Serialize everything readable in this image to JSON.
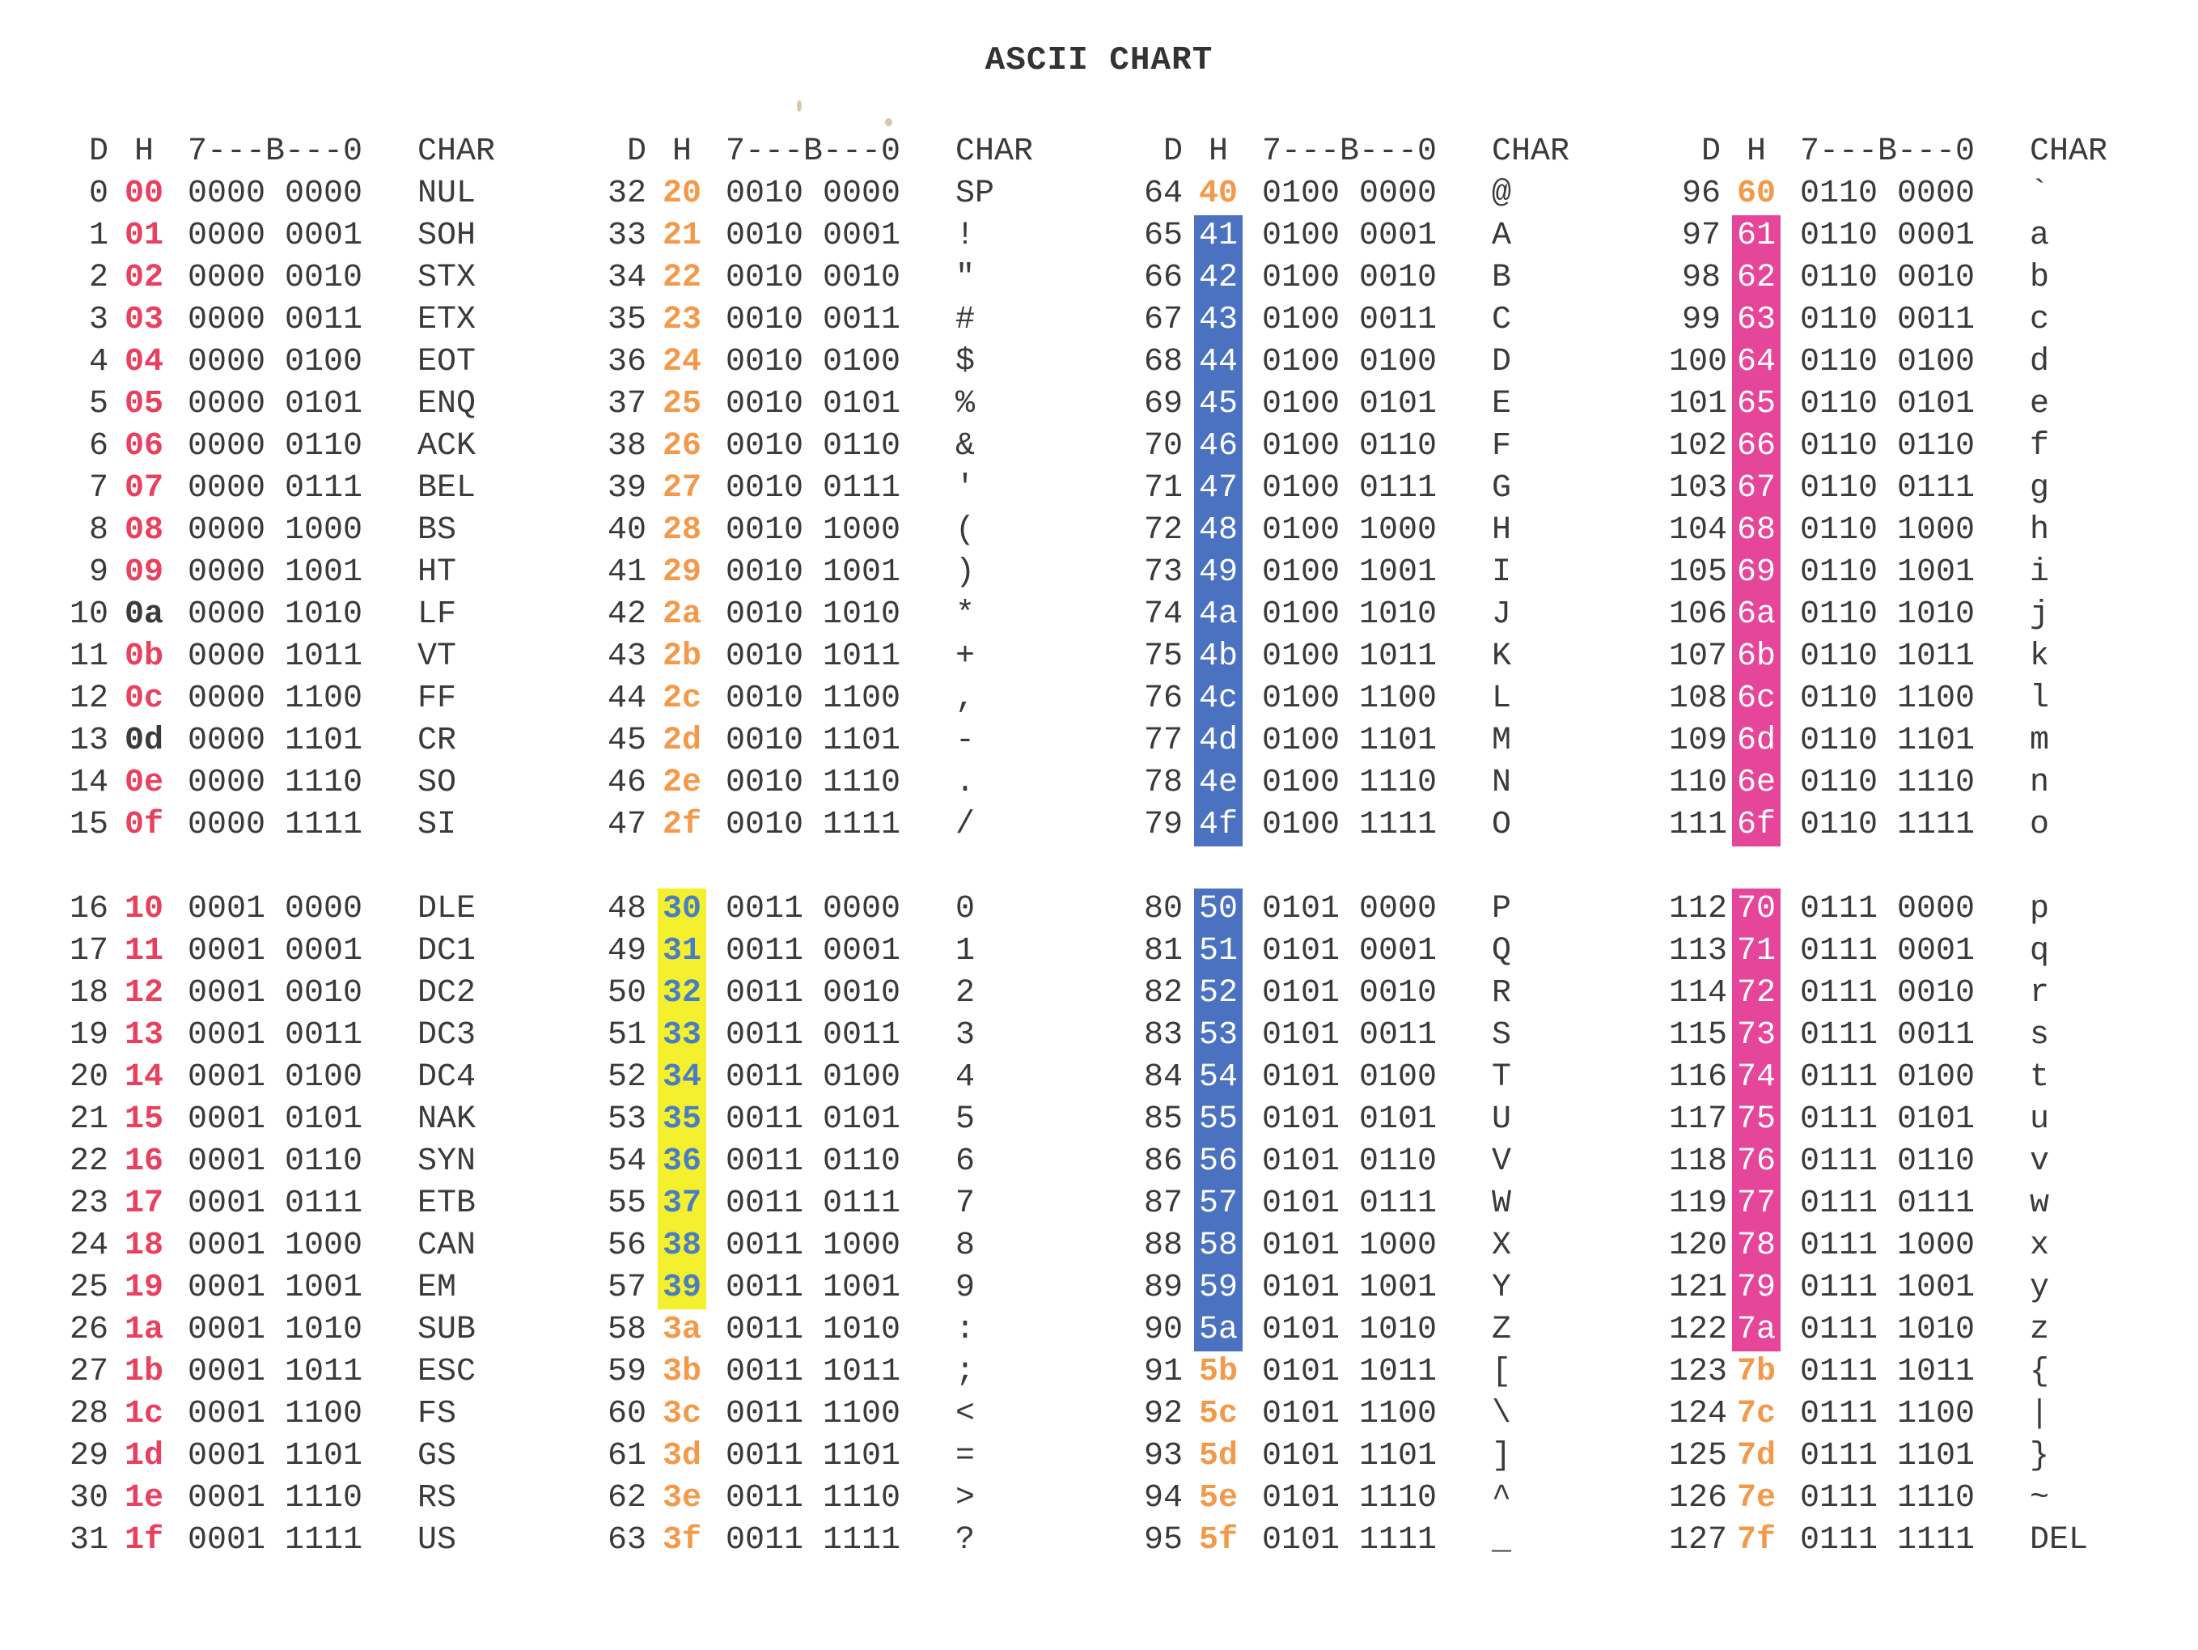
{
  "title": "ASCII CHART",
  "header": {
    "dec": "D",
    "hex": "H",
    "bits": "7---B---0",
    "char": "CHAR"
  },
  "colors": {
    "red": "#e8405e",
    "orange": "#f39a4a",
    "yellow": "#f4f02e",
    "blue": "#4a72c0",
    "pink": "#e6469a"
  },
  "rows": [
    {
      "d": "0",
      "h": "00",
      "b": "0000 0000",
      "c": "NUL",
      "s": "red"
    },
    {
      "d": "1",
      "h": "01",
      "b": "0000 0001",
      "c": "SOH",
      "s": "red"
    },
    {
      "d": "2",
      "h": "02",
      "b": "0000 0010",
      "c": "STX",
      "s": "red"
    },
    {
      "d": "3",
      "h": "03",
      "b": "0000 0011",
      "c": "ETX",
      "s": "red"
    },
    {
      "d": "4",
      "h": "04",
      "b": "0000 0100",
      "c": "EOT",
      "s": "red"
    },
    {
      "d": "5",
      "h": "05",
      "b": "0000 0101",
      "c": "ENQ",
      "s": "red"
    },
    {
      "d": "6",
      "h": "06",
      "b": "0000 0110",
      "c": "ACK",
      "s": "red"
    },
    {
      "d": "7",
      "h": "07",
      "b": "0000 0111",
      "c": "BEL",
      "s": "red"
    },
    {
      "d": "8",
      "h": "08",
      "b": "0000 1000",
      "c": "BS",
      "s": "red"
    },
    {
      "d": "9",
      "h": "09",
      "b": "0000 1001",
      "c": "HT",
      "s": "red"
    },
    {
      "d": "10",
      "h": "0a",
      "b": "0000 1010",
      "c": "LF",
      "s": "dark"
    },
    {
      "d": "11",
      "h": "0b",
      "b": "0000 1011",
      "c": "VT",
      "s": "red"
    },
    {
      "d": "12",
      "h": "0c",
      "b": "0000 1100",
      "c": "FF",
      "s": "red"
    },
    {
      "d": "13",
      "h": "0d",
      "b": "0000 1101",
      "c": "CR",
      "s": "dark"
    },
    {
      "d": "14",
      "h": "0e",
      "b": "0000 1110",
      "c": "SO",
      "s": "red"
    },
    {
      "d": "15",
      "h": "0f",
      "b": "0000 1111",
      "c": "SI",
      "s": "red"
    },
    {
      "d": "16",
      "h": "10",
      "b": "0001 0000",
      "c": "DLE",
      "s": "red"
    },
    {
      "d": "17",
      "h": "11",
      "b": "0001 0001",
      "c": "DC1",
      "s": "red"
    },
    {
      "d": "18",
      "h": "12",
      "b": "0001 0010",
      "c": "DC2",
      "s": "red"
    },
    {
      "d": "19",
      "h": "13",
      "b": "0001 0011",
      "c": "DC3",
      "s": "red"
    },
    {
      "d": "20",
      "h": "14",
      "b": "0001 0100",
      "c": "DC4",
      "s": "red"
    },
    {
      "d": "21",
      "h": "15",
      "b": "0001 0101",
      "c": "NAK",
      "s": "red"
    },
    {
      "d": "22",
      "h": "16",
      "b": "0001 0110",
      "c": "SYN",
      "s": "red"
    },
    {
      "d": "23",
      "h": "17",
      "b": "0001 0111",
      "c": "ETB",
      "s": "red"
    },
    {
      "d": "24",
      "h": "18",
      "b": "0001 1000",
      "c": "CAN",
      "s": "red"
    },
    {
      "d": "25",
      "h": "19",
      "b": "0001 1001",
      "c": "EM",
      "s": "red"
    },
    {
      "d": "26",
      "h": "1a",
      "b": "0001 1010",
      "c": "SUB",
      "s": "red"
    },
    {
      "d": "27",
      "h": "1b",
      "b": "0001 1011",
      "c": "ESC",
      "s": "red"
    },
    {
      "d": "28",
      "h": "1c",
      "b": "0001 1100",
      "c": "FS",
      "s": "red"
    },
    {
      "d": "29",
      "h": "1d",
      "b": "0001 1101",
      "c": "GS",
      "s": "red"
    },
    {
      "d": "30",
      "h": "1e",
      "b": "0001 1110",
      "c": "RS",
      "s": "red"
    },
    {
      "d": "31",
      "h": "1f",
      "b": "0001 1111",
      "c": "US",
      "s": "red"
    },
    {
      "d": "32",
      "h": "20",
      "b": "0010 0000",
      "c": "SP",
      "s": "orange"
    },
    {
      "d": "33",
      "h": "21",
      "b": "0010 0001",
      "c": "!",
      "s": "orange"
    },
    {
      "d": "34",
      "h": "22",
      "b": "0010 0010",
      "c": "\"",
      "s": "orange"
    },
    {
      "d": "35",
      "h": "23",
      "b": "0010 0011",
      "c": "#",
      "s": "orange"
    },
    {
      "d": "36",
      "h": "24",
      "b": "0010 0100",
      "c": "$",
      "s": "orange"
    },
    {
      "d": "37",
      "h": "25",
      "b": "0010 0101",
      "c": "%",
      "s": "orange"
    },
    {
      "d": "38",
      "h": "26",
      "b": "0010 0110",
      "c": "&",
      "s": "orange"
    },
    {
      "d": "39",
      "h": "27",
      "b": "0010 0111",
      "c": "'",
      "s": "orange"
    },
    {
      "d": "40",
      "h": "28",
      "b": "0010 1000",
      "c": "(",
      "s": "orange"
    },
    {
      "d": "41",
      "h": "29",
      "b": "0010 1001",
      "c": ")",
      "s": "orange"
    },
    {
      "d": "42",
      "h": "2a",
      "b": "0010 1010",
      "c": "*",
      "s": "orange"
    },
    {
      "d": "43",
      "h": "2b",
      "b": "0010 1011",
      "c": "+",
      "s": "orange"
    },
    {
      "d": "44",
      "h": "2c",
      "b": "0010 1100",
      "c": ",",
      "s": "orange"
    },
    {
      "d": "45",
      "h": "2d",
      "b": "0010 1101",
      "c": "-",
      "s": "orange"
    },
    {
      "d": "46",
      "h": "2e",
      "b": "0010 1110",
      "c": ".",
      "s": "orange"
    },
    {
      "d": "47",
      "h": "2f",
      "b": "0010 1111",
      "c": "/",
      "s": "orange"
    },
    {
      "d": "48",
      "h": "30",
      "b": "0011 0000",
      "c": "0",
      "s": "yellow"
    },
    {
      "d": "49",
      "h": "31",
      "b": "0011 0001",
      "c": "1",
      "s": "yellow"
    },
    {
      "d": "50",
      "h": "32",
      "b": "0011 0010",
      "c": "2",
      "s": "yellow"
    },
    {
      "d": "51",
      "h": "33",
      "b": "0011 0011",
      "c": "3",
      "s": "yellow"
    },
    {
      "d": "52",
      "h": "34",
      "b": "0011 0100",
      "c": "4",
      "s": "yellow"
    },
    {
      "d": "53",
      "h": "35",
      "b": "0011 0101",
      "c": "5",
      "s": "yellow"
    },
    {
      "d": "54",
      "h": "36",
      "b": "0011 0110",
      "c": "6",
      "s": "yellow"
    },
    {
      "d": "55",
      "h": "37",
      "b": "0011 0111",
      "c": "7",
      "s": "yellow"
    },
    {
      "d": "56",
      "h": "38",
      "b": "0011 1000",
      "c": "8",
      "s": "yellow"
    },
    {
      "d": "57",
      "h": "39",
      "b": "0011 1001",
      "c": "9",
      "s": "yellow"
    },
    {
      "d": "58",
      "h": "3a",
      "b": "0011 1010",
      "c": ":",
      "s": "orange"
    },
    {
      "d": "59",
      "h": "3b",
      "b": "0011 1011",
      "c": ";",
      "s": "orange"
    },
    {
      "d": "60",
      "h": "3c",
      "b": "0011 1100",
      "c": "<",
      "s": "orange"
    },
    {
      "d": "61",
      "h": "3d",
      "b": "0011 1101",
      "c": "=",
      "s": "orange"
    },
    {
      "d": "62",
      "h": "3e",
      "b": "0011 1110",
      "c": ">",
      "s": "orange"
    },
    {
      "d": "63",
      "h": "3f",
      "b": "0011 1111",
      "c": "?",
      "s": "orange"
    },
    {
      "d": "64",
      "h": "40",
      "b": "0100 0000",
      "c": "@",
      "s": "orange"
    },
    {
      "d": "65",
      "h": "41",
      "b": "0100 0001",
      "c": "A",
      "s": "blue"
    },
    {
      "d": "66",
      "h": "42",
      "b": "0100 0010",
      "c": "B",
      "s": "blue"
    },
    {
      "d": "67",
      "h": "43",
      "b": "0100 0011",
      "c": "C",
      "s": "blue"
    },
    {
      "d": "68",
      "h": "44",
      "b": "0100 0100",
      "c": "D",
      "s": "blue"
    },
    {
      "d": "69",
      "h": "45",
      "b": "0100 0101",
      "c": "E",
      "s": "blue"
    },
    {
      "d": "70",
      "h": "46",
      "b": "0100 0110",
      "c": "F",
      "s": "blue"
    },
    {
      "d": "71",
      "h": "47",
      "b": "0100 0111",
      "c": "G",
      "s": "blue"
    },
    {
      "d": "72",
      "h": "48",
      "b": "0100 1000",
      "c": "H",
      "s": "blue"
    },
    {
      "d": "73",
      "h": "49",
      "b": "0100 1001",
      "c": "I",
      "s": "blue"
    },
    {
      "d": "74",
      "h": "4a",
      "b": "0100 1010",
      "c": "J",
      "s": "blue"
    },
    {
      "d": "75",
      "h": "4b",
      "b": "0100 1011",
      "c": "K",
      "s": "blue"
    },
    {
      "d": "76",
      "h": "4c",
      "b": "0100 1100",
      "c": "L",
      "s": "blue"
    },
    {
      "d": "77",
      "h": "4d",
      "b": "0100 1101",
      "c": "M",
      "s": "blue"
    },
    {
      "d": "78",
      "h": "4e",
      "b": "0100 1110",
      "c": "N",
      "s": "blue"
    },
    {
      "d": "79",
      "h": "4f",
      "b": "0100 1111",
      "c": "O",
      "s": "blue"
    },
    {
      "d": "80",
      "h": "50",
      "b": "0101 0000",
      "c": "P",
      "s": "blue"
    },
    {
      "d": "81",
      "h": "51",
      "b": "0101 0001",
      "c": "Q",
      "s": "blue"
    },
    {
      "d": "82",
      "h": "52",
      "b": "0101 0010",
      "c": "R",
      "s": "blue"
    },
    {
      "d": "83",
      "h": "53",
      "b": "0101 0011",
      "c": "S",
      "s": "blue"
    },
    {
      "d": "84",
      "h": "54",
      "b": "0101 0100",
      "c": "T",
      "s": "blue"
    },
    {
      "d": "85",
      "h": "55",
      "b": "0101 0101",
      "c": "U",
      "s": "blue"
    },
    {
      "d": "86",
      "h": "56",
      "b": "0101 0110",
      "c": "V",
      "s": "blue"
    },
    {
      "d": "87",
      "h": "57",
      "b": "0101 0111",
      "c": "W",
      "s": "blue"
    },
    {
      "d": "88",
      "h": "58",
      "b": "0101 1000",
      "c": "X",
      "s": "blue"
    },
    {
      "d": "89",
      "h": "59",
      "b": "0101 1001",
      "c": "Y",
      "s": "blue"
    },
    {
      "d": "90",
      "h": "5a",
      "b": "0101 1010",
      "c": "Z",
      "s": "blue"
    },
    {
      "d": "91",
      "h": "5b",
      "b": "0101 1011",
      "c": "[",
      "s": "orange"
    },
    {
      "d": "92",
      "h": "5c",
      "b": "0101 1100",
      "c": "\\",
      "s": "orange"
    },
    {
      "d": "93",
      "h": "5d",
      "b": "0101 1101",
      "c": "]",
      "s": "orange"
    },
    {
      "d": "94",
      "h": "5e",
      "b": "0101 1110",
      "c": "^",
      "s": "orange"
    },
    {
      "d": "95",
      "h": "5f",
      "b": "0101 1111",
      "c": "_",
      "s": "orange"
    },
    {
      "d": "96",
      "h": "60",
      "b": "0110 0000",
      "c": "`",
      "s": "orange"
    },
    {
      "d": "97",
      "h": "61",
      "b": "0110 0001",
      "c": "a",
      "s": "pink"
    },
    {
      "d": "98",
      "h": "62",
      "b": "0110 0010",
      "c": "b",
      "s": "pink"
    },
    {
      "d": "99",
      "h": "63",
      "b": "0110 0011",
      "c": "c",
      "s": "pink"
    },
    {
      "d": "100",
      "h": "64",
      "b": "0110 0100",
      "c": "d",
      "s": "pink"
    },
    {
      "d": "101",
      "h": "65",
      "b": "0110 0101",
      "c": "e",
      "s": "pink"
    },
    {
      "d": "102",
      "h": "66",
      "b": "0110 0110",
      "c": "f",
      "s": "pink"
    },
    {
      "d": "103",
      "h": "67",
      "b": "0110 0111",
      "c": "g",
      "s": "pink"
    },
    {
      "d": "104",
      "h": "68",
      "b": "0110 1000",
      "c": "h",
      "s": "pink"
    },
    {
      "d": "105",
      "h": "69",
      "b": "0110 1001",
      "c": "i",
      "s": "pink"
    },
    {
      "d": "106",
      "h": "6a",
      "b": "0110 1010",
      "c": "j",
      "s": "pink"
    },
    {
      "d": "107",
      "h": "6b",
      "b": "0110 1011",
      "c": "k",
      "s": "pink"
    },
    {
      "d": "108",
      "h": "6c",
      "b": "0110 1100",
      "c": "l",
      "s": "pink"
    },
    {
      "d": "109",
      "h": "6d",
      "b": "0110 1101",
      "c": "m",
      "s": "pink"
    },
    {
      "d": "110",
      "h": "6e",
      "b": "0110 1110",
      "c": "n",
      "s": "pink"
    },
    {
      "d": "111",
      "h": "6f",
      "b": "0110 1111",
      "c": "o",
      "s": "pink"
    },
    {
      "d": "112",
      "h": "70",
      "b": "0111 0000",
      "c": "p",
      "s": "pink"
    },
    {
      "d": "113",
      "h": "71",
      "b": "0111 0001",
      "c": "q",
      "s": "pink"
    },
    {
      "d": "114",
      "h": "72",
      "b": "0111 0010",
      "c": "r",
      "s": "pink"
    },
    {
      "d": "115",
      "h": "73",
      "b": "0111 0011",
      "c": "s",
      "s": "pink"
    },
    {
      "d": "116",
      "h": "74",
      "b": "0111 0100",
      "c": "t",
      "s": "pink"
    },
    {
      "d": "117",
      "h": "75",
      "b": "0111 0101",
      "c": "u",
      "s": "pink"
    },
    {
      "d": "118",
      "h": "76",
      "b": "0111 0110",
      "c": "v",
      "s": "pink"
    },
    {
      "d": "119",
      "h": "77",
      "b": "0111 0111",
      "c": "w",
      "s": "pink"
    },
    {
      "d": "120",
      "h": "78",
      "b": "0111 1000",
      "c": "x",
      "s": "pink"
    },
    {
      "d": "121",
      "h": "79",
      "b": "0111 1001",
      "c": "y",
      "s": "pink"
    },
    {
      "d": "122",
      "h": "7a",
      "b": "0111 1010",
      "c": "z",
      "s": "pink"
    },
    {
      "d": "123",
      "h": "7b",
      "b": "0111 1011",
      "c": "{",
      "s": "orange"
    },
    {
      "d": "124",
      "h": "7c",
      "b": "0111 1100",
      "c": "|",
      "s": "orange"
    },
    {
      "d": "125",
      "h": "7d",
      "b": "0111 1101",
      "c": "}",
      "s": "orange"
    },
    {
      "d": "126",
      "h": "7e",
      "b": "0111 1110",
      "c": "~",
      "s": "orange"
    },
    {
      "d": "127",
      "h": "7f",
      "b": "0111 1111",
      "c": "DEL",
      "s": "orange"
    }
  ]
}
